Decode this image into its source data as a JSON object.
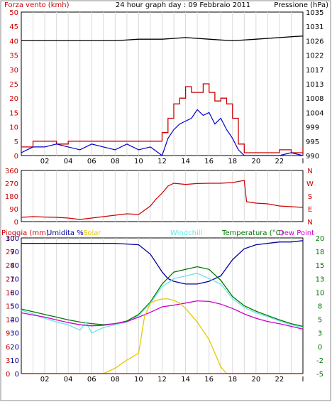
{
  "colors": {
    "wind": "#cc0000",
    "gust": "#cc0000",
    "avg_wind": "#0000cc",
    "pressure": "#000000",
    "direction": "#cc0000",
    "humidity": "#000099",
    "solar": "#e6c800",
    "windchill": "#66e6e6",
    "temperature": "#007700",
    "dewpoint": "#cc00cc",
    "rain": "#cc0000",
    "grid": "#d9d9d9",
    "frame": "#000000"
  },
  "chart_data": [
    {
      "type": "line",
      "title": "24 hour graph day : 09 Febbraio 2011",
      "left_axis_label": "Forza vento (kmh)",
      "right_axis_label": "Pressione (hPa)",
      "x_tick_labels": [
        "02",
        "04",
        "06",
        "08",
        "10",
        "12",
        "14",
        "16",
        "18",
        "20",
        "22",
        "I"
      ],
      "x_range_hours": [
        0,
        24
      ],
      "left_ticks": [
        "0",
        "5",
        "10",
        "15",
        "20",
        "25",
        "30",
        "35",
        "40",
        "45",
        "50"
      ],
      "left_range": [
        0,
        50
      ],
      "right_ticks": [
        "990",
        "995",
        "999",
        "1004",
        "1008",
        "1013",
        "1017",
        "1022",
        "1026",
        "1031",
        "1035"
      ],
      "right_range": [
        990,
        1035
      ],
      "grid": "vertical",
      "series": [
        {
          "key": "gust",
          "x": [
            0,
            1,
            2,
            3,
            4,
            5,
            6,
            7,
            8,
            9,
            10,
            11,
            12,
            12.5,
            13,
            13.5,
            14,
            14.5,
            15,
            15.5,
            16,
            16.5,
            17,
            17.5,
            18,
            18.5,
            19,
            19.5,
            20,
            21,
            22,
            23,
            24
          ],
          "values": [
            3,
            5,
            5,
            4,
            5,
            5,
            5,
            5,
            5,
            5,
            5,
            5,
            8,
            13,
            18,
            20,
            24,
            22,
            22,
            25,
            22,
            19,
            20,
            18,
            13,
            4,
            1,
            1,
            1,
            1,
            2,
            1,
            3
          ]
        },
        {
          "key": "wind",
          "x": [
            0,
            1,
            2,
            3,
            4,
            5,
            6,
            7,
            8,
            9,
            10,
            11,
            12,
            12.5,
            13,
            13.5,
            14,
            14.5,
            15,
            15.5,
            16,
            16.5,
            17,
            17.5,
            18,
            18.5,
            19,
            19.5,
            20,
            21,
            22,
            23,
            24
          ],
          "values": [
            1,
            3,
            3,
            4,
            3,
            2,
            4,
            3,
            2,
            4,
            2,
            3,
            0,
            6,
            9,
            11,
            12,
            13,
            16,
            14,
            15,
            11,
            13,
            9,
            6,
            2,
            0,
            0,
            0,
            0,
            0,
            1,
            0
          ]
        },
        {
          "key": "pressure",
          "x": [
            0,
            2,
            4,
            6,
            8,
            10,
            12,
            14,
            16,
            18,
            20,
            22,
            24
          ],
          "values": [
            1026,
            1026,
            1026,
            1026,
            1026,
            1026.5,
            1026.5,
            1027,
            1026.5,
            1026,
            1026.5,
            1027,
            1027.5
          ]
        }
      ]
    },
    {
      "type": "line",
      "title": "",
      "left_ticks": [
        "0",
        "90",
        "180",
        "270",
        "360"
      ],
      "left_range": [
        0,
        360
      ],
      "right_tick_labels": [
        "N",
        "W",
        "S",
        "E",
        "N"
      ],
      "x_range_hours": [
        0,
        24
      ],
      "grid": "vertical",
      "series": [
        {
          "key": "direction",
          "x": [
            0,
            1,
            2,
            3,
            4,
            5,
            6,
            7,
            8,
            9,
            10,
            11,
            11.5,
            12,
            12.5,
            13,
            14,
            15,
            16,
            17,
            18,
            19,
            19.2,
            20,
            21,
            22,
            23,
            24
          ],
          "values": [
            30,
            35,
            32,
            30,
            25,
            15,
            25,
            35,
            45,
            55,
            50,
            110,
            160,
            200,
            250,
            270,
            262,
            268,
            270,
            270,
            275,
            290,
            140,
            130,
            125,
            110,
            105,
            100
          ]
        }
      ]
    },
    {
      "type": "line",
      "title": "",
      "legend": [
        "Pioggia (mm)",
        "Umidita %",
        "Solar",
        "Windchill",
        "Temperatura (°C)",
        "Dew Point"
      ],
      "left_ticks": [
        "0",
        "3",
        "6",
        "9",
        "12",
        "15",
        "18",
        "21",
        "24",
        "27",
        "30"
      ],
      "inner_left_ticks": [
        "0",
        "10",
        "20",
        "30",
        "40",
        "50",
        "60",
        "70",
        "80",
        "90",
        "100"
      ],
      "left_range": [
        0,
        100
      ],
      "right_ticks": [
        "-5",
        "-2",
        "0",
        "3",
        "5",
        "8",
        "10",
        "13",
        "15",
        "18",
        "20"
      ],
      "right_range": [
        -5,
        20
      ],
      "x_tick_labels": [
        "02",
        "04",
        "06",
        "08",
        "10",
        "12",
        "14",
        "16",
        "18",
        "20",
        "22",
        "I"
      ],
      "x_range_hours": [
        0,
        24
      ],
      "grid": "vertical",
      "series": [
        {
          "key": "humidity",
          "x": [
            0,
            1,
            2,
            4,
            6,
            8,
            10,
            11,
            12,
            12.5,
            13,
            14,
            15,
            16,
            17,
            18,
            19,
            20,
            21,
            22,
            23,
            24
          ],
          "values": [
            96,
            96,
            96,
            96,
            96,
            96,
            95,
            88,
            75,
            70,
            68,
            66,
            66,
            68,
            72,
            84,
            92,
            95,
            96,
            97,
            97,
            98
          ]
        },
        {
          "key": "temperature",
          "x": [
            0,
            1,
            2,
            3,
            4,
            5,
            6,
            7,
            8,
            9,
            10,
            11,
            12,
            13,
            14,
            15,
            16,
            17,
            18,
            19,
            20,
            21,
            22,
            23,
            24
          ],
          "values": [
            6.9,
            6.4,
            5.9,
            5.4,
            4.9,
            4.5,
            4.2,
            4.0,
            4.2,
            4.7,
            5.9,
            8.2,
            11.5,
            13.7,
            14.2,
            14.7,
            14.2,
            12.2,
            9.2,
            7.5,
            6.5,
            5.7,
            4.9,
            4.2,
            3.7
          ]
        },
        {
          "key": "windchill",
          "x": [
            0,
            1,
            2,
            3,
            4,
            5,
            5.5,
            6,
            7,
            8,
            9,
            10,
            11,
            12,
            13,
            14,
            15,
            16,
            17,
            18,
            19,
            20,
            21,
            22,
            23,
            24
          ],
          "values": [
            6.7,
            6.0,
            5.2,
            4.5,
            4.0,
            3.0,
            4.5,
            2.5,
            3.5,
            4.0,
            4.5,
            5.7,
            8.0,
            11.0,
            12.5,
            13.0,
            13.5,
            12.5,
            11.5,
            8.8,
            7.2,
            6.2,
            5.5,
            4.7,
            4.0,
            3.5
          ]
        },
        {
          "key": "dewpoint",
          "x": [
            0,
            1,
            2,
            3,
            4,
            5,
            6,
            7,
            8,
            9,
            10,
            11,
            12,
            13,
            14,
            15,
            16,
            17,
            18,
            19,
            20,
            21,
            22,
            23,
            24
          ],
          "values": [
            6.2,
            5.8,
            5.4,
            4.9,
            4.4,
            4.0,
            3.8,
            3.9,
            4.2,
            4.6,
            5.4,
            6.3,
            7.3,
            7.6,
            8.0,
            8.4,
            8.3,
            7.8,
            7.0,
            6.0,
            5.2,
            4.6,
            4.2,
            3.7,
            3.2
          ]
        },
        {
          "key": "solar",
          "x": [
            0,
            7,
            8,
            9,
            10,
            10.5,
            11,
            11.5,
            12,
            12.5,
            13,
            13.5,
            14,
            15,
            16,
            17,
            17.5,
            24
          ],
          "values": [
            0,
            0,
            4,
            10,
            15,
            42,
            52,
            54,
            55,
            55,
            54,
            52,
            48,
            38,
            25,
            5,
            0,
            0
          ]
        },
        {
          "key": "rain",
          "x": [
            0,
            24
          ],
          "values": [
            0,
            0
          ]
        }
      ]
    }
  ]
}
